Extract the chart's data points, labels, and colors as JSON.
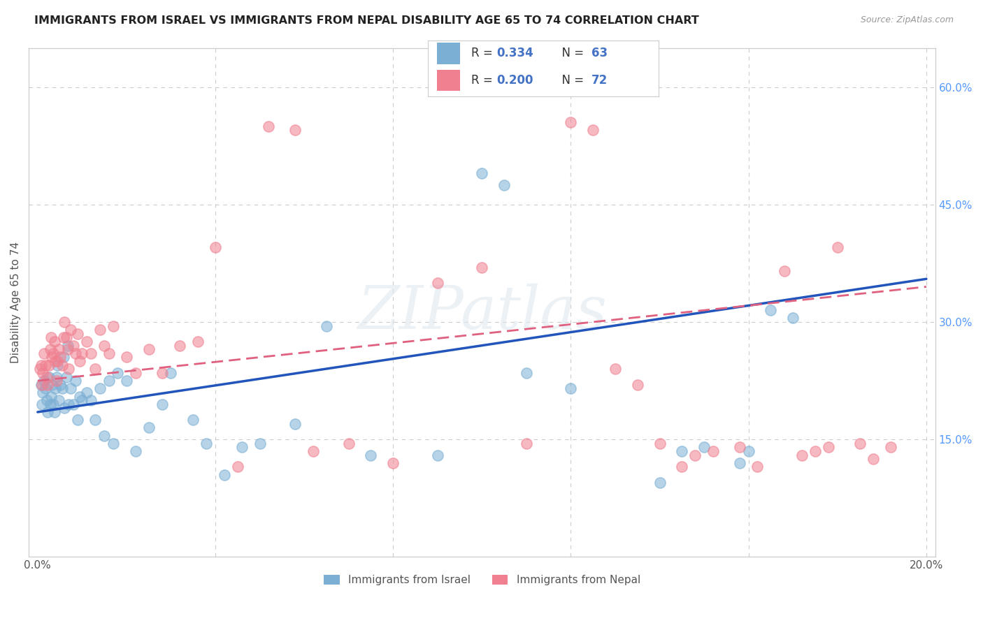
{
  "title": "IMMIGRANTS FROM ISRAEL VS IMMIGRANTS FROM NEPAL DISABILITY AGE 65 TO 74 CORRELATION CHART",
  "source": "Source: ZipAtlas.com",
  "ylabel": "Disability Age 65 to 74",
  "watermark": "ZIPatlas",
  "israel_R": 0.334,
  "israel_N": 63,
  "nepal_R": 0.2,
  "nepal_N": 72,
  "israel_color": "#7bafd4",
  "nepal_color": "#f08090",
  "israel_line_color": "#2255bb",
  "nepal_line_color": "#e06080",
  "right_axis_color": "#5599ff",
  "legend_text_color": "#4472c4",
  "legend_rn_color": "#4472c4",
  "title_color": "#222222",
  "background_color": "#ffffff",
  "grid_color": "#cccccc",
  "xlim": [
    0.0,
    0.2
  ],
  "ylim": [
    0.0,
    0.65
  ],
  "y_ticks_right": [
    0.15,
    0.3,
    0.45,
    0.6
  ],
  "y_tick_labels_right": [
    "15.0%",
    "30.0%",
    "45.0%",
    "60.0%"
  ],
  "israel_x": [
    0.0008,
    0.001,
    0.0012,
    0.0015,
    0.0018,
    0.002,
    0.0022,
    0.0025,
    0.0028,
    0.003,
    0.0032,
    0.0035,
    0.0038,
    0.004,
    0.0042,
    0.0045,
    0.0048,
    0.005,
    0.0055,
    0.0058,
    0.006,
    0.0065,
    0.0068,
    0.007,
    0.0075,
    0.008,
    0.0085,
    0.009,
    0.0095,
    0.01,
    0.011,
    0.012,
    0.013,
    0.014,
    0.015,
    0.016,
    0.017,
    0.018,
    0.02,
    0.022,
    0.025,
    0.028,
    0.03,
    0.035,
    0.038,
    0.042,
    0.046,
    0.05,
    0.058,
    0.065,
    0.075,
    0.09,
    0.1,
    0.105,
    0.11,
    0.12,
    0.14,
    0.145,
    0.15,
    0.158,
    0.16,
    0.165,
    0.17
  ],
  "israel_y": [
    0.22,
    0.195,
    0.21,
    0.225,
    0.215,
    0.2,
    0.185,
    0.23,
    0.195,
    0.205,
    0.22,
    0.195,
    0.185,
    0.215,
    0.23,
    0.245,
    0.2,
    0.22,
    0.215,
    0.255,
    0.19,
    0.23,
    0.27,
    0.195,
    0.215,
    0.195,
    0.225,
    0.175,
    0.205,
    0.2,
    0.21,
    0.2,
    0.175,
    0.215,
    0.155,
    0.225,
    0.145,
    0.235,
    0.225,
    0.135,
    0.165,
    0.195,
    0.235,
    0.175,
    0.145,
    0.105,
    0.14,
    0.145,
    0.17,
    0.295,
    0.13,
    0.13,
    0.49,
    0.475,
    0.235,
    0.215,
    0.095,
    0.135,
    0.14,
    0.12,
    0.135,
    0.315,
    0.305
  ],
  "nepal_x": [
    0.0005,
    0.0008,
    0.001,
    0.0012,
    0.0015,
    0.0018,
    0.002,
    0.0022,
    0.0025,
    0.0028,
    0.003,
    0.0032,
    0.0035,
    0.0038,
    0.004,
    0.0042,
    0.0045,
    0.0048,
    0.005,
    0.0055,
    0.0058,
    0.006,
    0.0065,
    0.0068,
    0.007,
    0.0075,
    0.008,
    0.0085,
    0.009,
    0.0095,
    0.01,
    0.011,
    0.012,
    0.013,
    0.014,
    0.015,
    0.016,
    0.017,
    0.02,
    0.022,
    0.025,
    0.028,
    0.032,
    0.036,
    0.04,
    0.045,
    0.052,
    0.058,
    0.062,
    0.07,
    0.08,
    0.09,
    0.1,
    0.11,
    0.12,
    0.125,
    0.13,
    0.135,
    0.14,
    0.145,
    0.148,
    0.152,
    0.158,
    0.162,
    0.168,
    0.172,
    0.175,
    0.178,
    0.18,
    0.185,
    0.188,
    0.192
  ],
  "nepal_y": [
    0.24,
    0.245,
    0.22,
    0.235,
    0.26,
    0.245,
    0.23,
    0.22,
    0.245,
    0.265,
    0.28,
    0.255,
    0.26,
    0.275,
    0.25,
    0.225,
    0.25,
    0.265,
    0.255,
    0.245,
    0.28,
    0.3,
    0.28,
    0.265,
    0.24,
    0.29,
    0.27,
    0.26,
    0.285,
    0.25,
    0.26,
    0.275,
    0.26,
    0.24,
    0.29,
    0.27,
    0.26,
    0.295,
    0.255,
    0.235,
    0.265,
    0.235,
    0.27,
    0.275,
    0.395,
    0.115,
    0.55,
    0.545,
    0.135,
    0.145,
    0.12,
    0.35,
    0.37,
    0.145,
    0.555,
    0.545,
    0.24,
    0.22,
    0.145,
    0.115,
    0.13,
    0.135,
    0.14,
    0.115,
    0.365,
    0.13,
    0.135,
    0.14,
    0.395,
    0.145,
    0.125,
    0.14
  ]
}
